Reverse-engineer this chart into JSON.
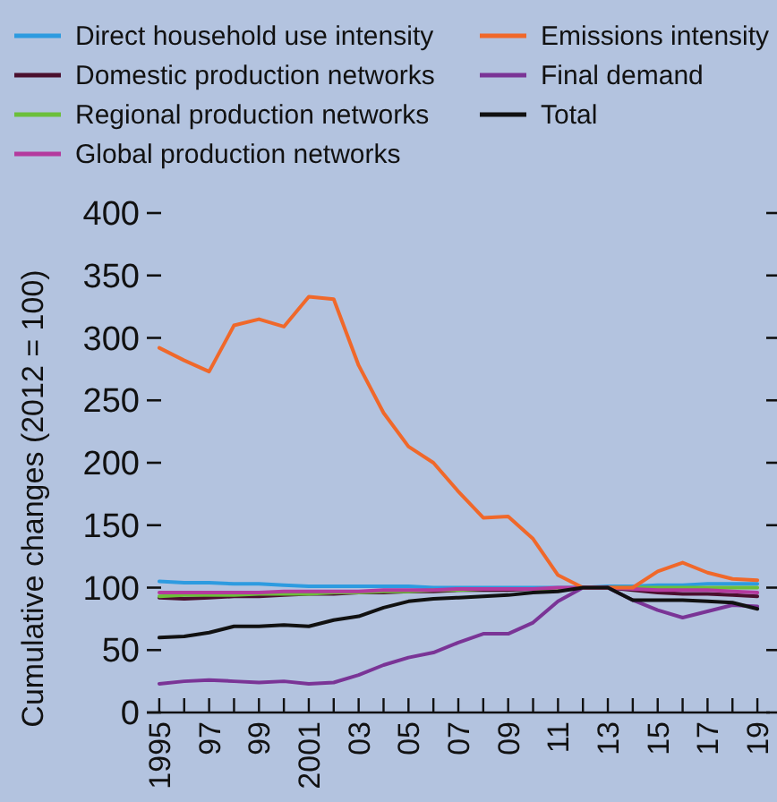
{
  "chart_data": {
    "type": "line",
    "ylabel": "Cumulative changes (2012 = 100)",
    "x": [
      1995,
      1996,
      1997,
      1998,
      1999,
      2000,
      2001,
      2002,
      2003,
      2004,
      2005,
      2006,
      2007,
      2008,
      2009,
      2010,
      2011,
      2012,
      2013,
      2014,
      2015,
      2016,
      2017,
      2018,
      2019
    ],
    "xlim": [
      1994.5,
      2019.5
    ],
    "xticks": [
      {
        "value": 1995,
        "label": "1995"
      },
      {
        "value": 1996,
        "label": null
      },
      {
        "value": 1997,
        "label": "97"
      },
      {
        "value": 1998,
        "label": null
      },
      {
        "value": 1999,
        "label": "99"
      },
      {
        "value": 2000,
        "label": null
      },
      {
        "value": 2001,
        "label": "2001"
      },
      {
        "value": 2002,
        "label": null
      },
      {
        "value": 2003,
        "label": "03"
      },
      {
        "value": 2004,
        "label": null
      },
      {
        "value": 2005,
        "label": "05"
      },
      {
        "value": 2006,
        "label": null
      },
      {
        "value": 2007,
        "label": "07"
      },
      {
        "value": 2008,
        "label": null
      },
      {
        "value": 2009,
        "label": "09"
      },
      {
        "value": 2010,
        "label": null
      },
      {
        "value": 2011,
        "label": "11"
      },
      {
        "value": 2012,
        "label": null
      },
      {
        "value": 2013,
        "label": "13"
      },
      {
        "value": 2014,
        "label": null
      },
      {
        "value": 2015,
        "label": "15"
      },
      {
        "value": 2016,
        "label": null
      },
      {
        "value": 2017,
        "label": "17"
      },
      {
        "value": 2018,
        "label": null
      },
      {
        "value": 2019,
        "label": "19"
      }
    ],
    "ylim": [
      0,
      400
    ],
    "yticks": [
      0,
      50,
      100,
      150,
      200,
      250,
      300,
      350,
      400
    ],
    "grid": false,
    "legend": "top",
    "marker": "none",
    "line_style": "solid",
    "series": [
      {
        "name": "Direct household use intensity",
        "color": "#2d9be0",
        "values": [
          105,
          104,
          104,
          103,
          103,
          102,
          101,
          101,
          101,
          101,
          101,
          100,
          100,
          100,
          100,
          100,
          100,
          100,
          101,
          101,
          102,
          102,
          103,
          103,
          103
        ]
      },
      {
        "name": "Domestic production networks",
        "color": "#4a0f2e",
        "values": [
          92,
          91,
          92,
          93,
          93,
          94,
          95,
          95,
          96,
          96,
          97,
          97,
          98,
          98,
          98,
          99,
          99,
          100,
          100,
          98,
          96,
          95,
          95,
          94,
          93
        ]
      },
      {
        "name": "Regional production networks",
        "color": "#6cbf3a",
        "values": [
          93,
          94,
          94,
          94,
          95,
          95,
          95,
          96,
          96,
          97,
          97,
          98,
          98,
          99,
          99,
          99,
          99,
          100,
          100,
          100,
          100,
          100,
          100,
          100,
          100
        ]
      },
      {
        "name": "Global production networks",
        "color": "#b43a9e",
        "values": [
          96,
          96,
          96,
          96,
          96,
          97,
          97,
          97,
          97,
          98,
          98,
          98,
          99,
          99,
          99,
          99,
          100,
          100,
          100,
          99,
          98,
          98,
          98,
          97,
          96
        ]
      },
      {
        "name": "Emissions intensity",
        "color": "#f0682a",
        "values": [
          292,
          282,
          273,
          310,
          315,
          309,
          333,
          331,
          278,
          240,
          213,
          200,
          177,
          156,
          157,
          139,
          110,
          100,
          100,
          100,
          113,
          120,
          112,
          107,
          106
        ]
      },
      {
        "name": "Final demand",
        "color": "#7a3496",
        "values": [
          23,
          25,
          26,
          25,
          24,
          25,
          23,
          24,
          30,
          38,
          44,
          48,
          56,
          63,
          63,
          72,
          89,
          100,
          100,
          90,
          82,
          76,
          81,
          86,
          85
        ]
      },
      {
        "name": "Total",
        "color": "#111111",
        "values": [
          60,
          61,
          64,
          69,
          69,
          70,
          69,
          74,
          77,
          84,
          89,
          91,
          92,
          93,
          94,
          96,
          97,
          100,
          100,
          90,
          90,
          90,
          89,
          88,
          83
        ]
      }
    ]
  }
}
